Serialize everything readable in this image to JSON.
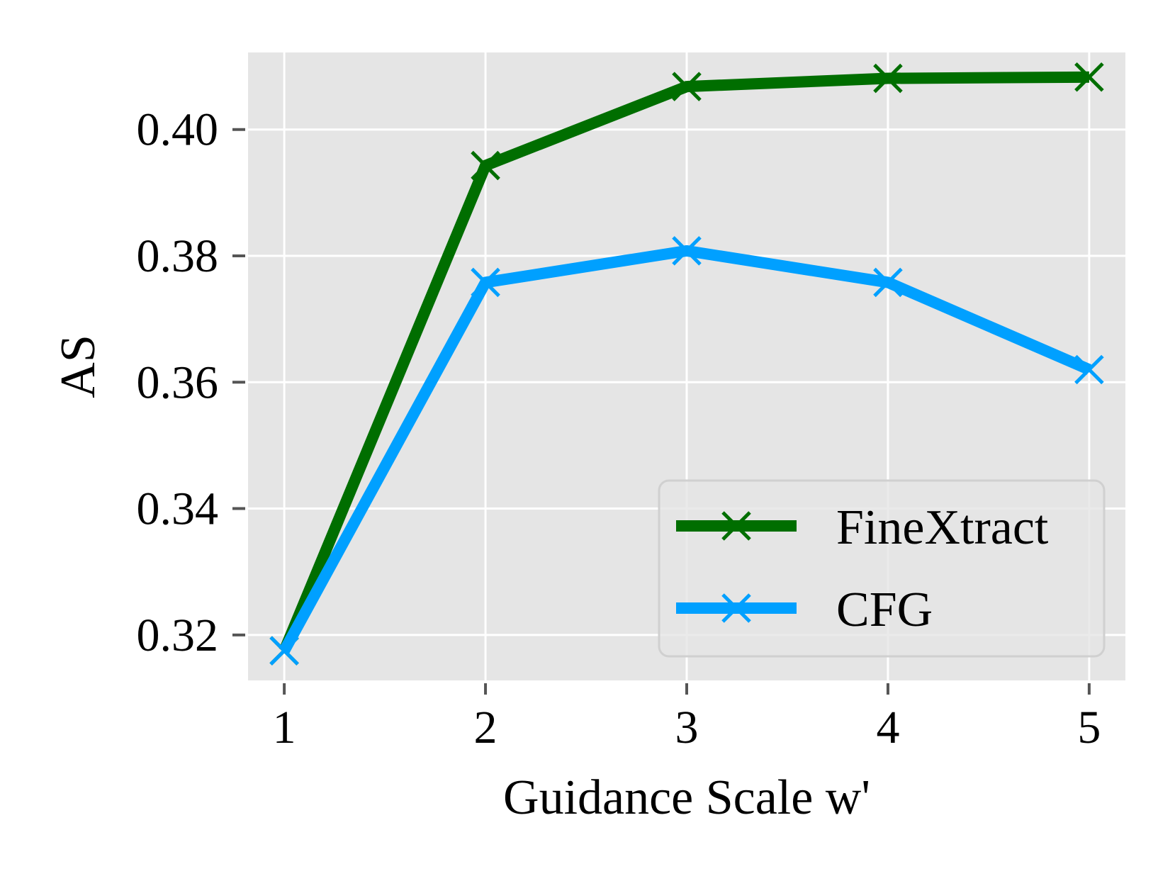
{
  "chart_data": {
    "type": "line",
    "xlabel": "Guidance Scale w'",
    "ylabel": "AS",
    "x": [
      1,
      2,
      3,
      4,
      5
    ],
    "xticks": [
      "1",
      "2",
      "3",
      "4",
      "5"
    ],
    "yticks": [
      "0.32",
      "0.34",
      "0.36",
      "0.38",
      "0.40"
    ],
    "ytick_values": [
      0.32,
      0.34,
      0.36,
      0.38,
      0.4
    ],
    "xlim": [
      0.82,
      5.18
    ],
    "ylim": [
      0.3128,
      0.4122
    ],
    "grid": true,
    "legend_position": "lower-right",
    "colors": {
      "background": "#ffffff",
      "plot_area": "#e5e5e5",
      "grid": "#ffffff",
      "tick_marks": "#555555"
    },
    "marker": "x",
    "series": [
      {
        "name": "FineXtract",
        "color": "#006e00",
        "values": [
          0.3175,
          0.3943,
          0.4068,
          0.4081,
          0.4083
        ]
      },
      {
        "name": "CFG",
        "color": "#00a0ff",
        "values": [
          0.3175,
          0.3758,
          0.3808,
          0.3758,
          0.362
        ]
      }
    ]
  }
}
